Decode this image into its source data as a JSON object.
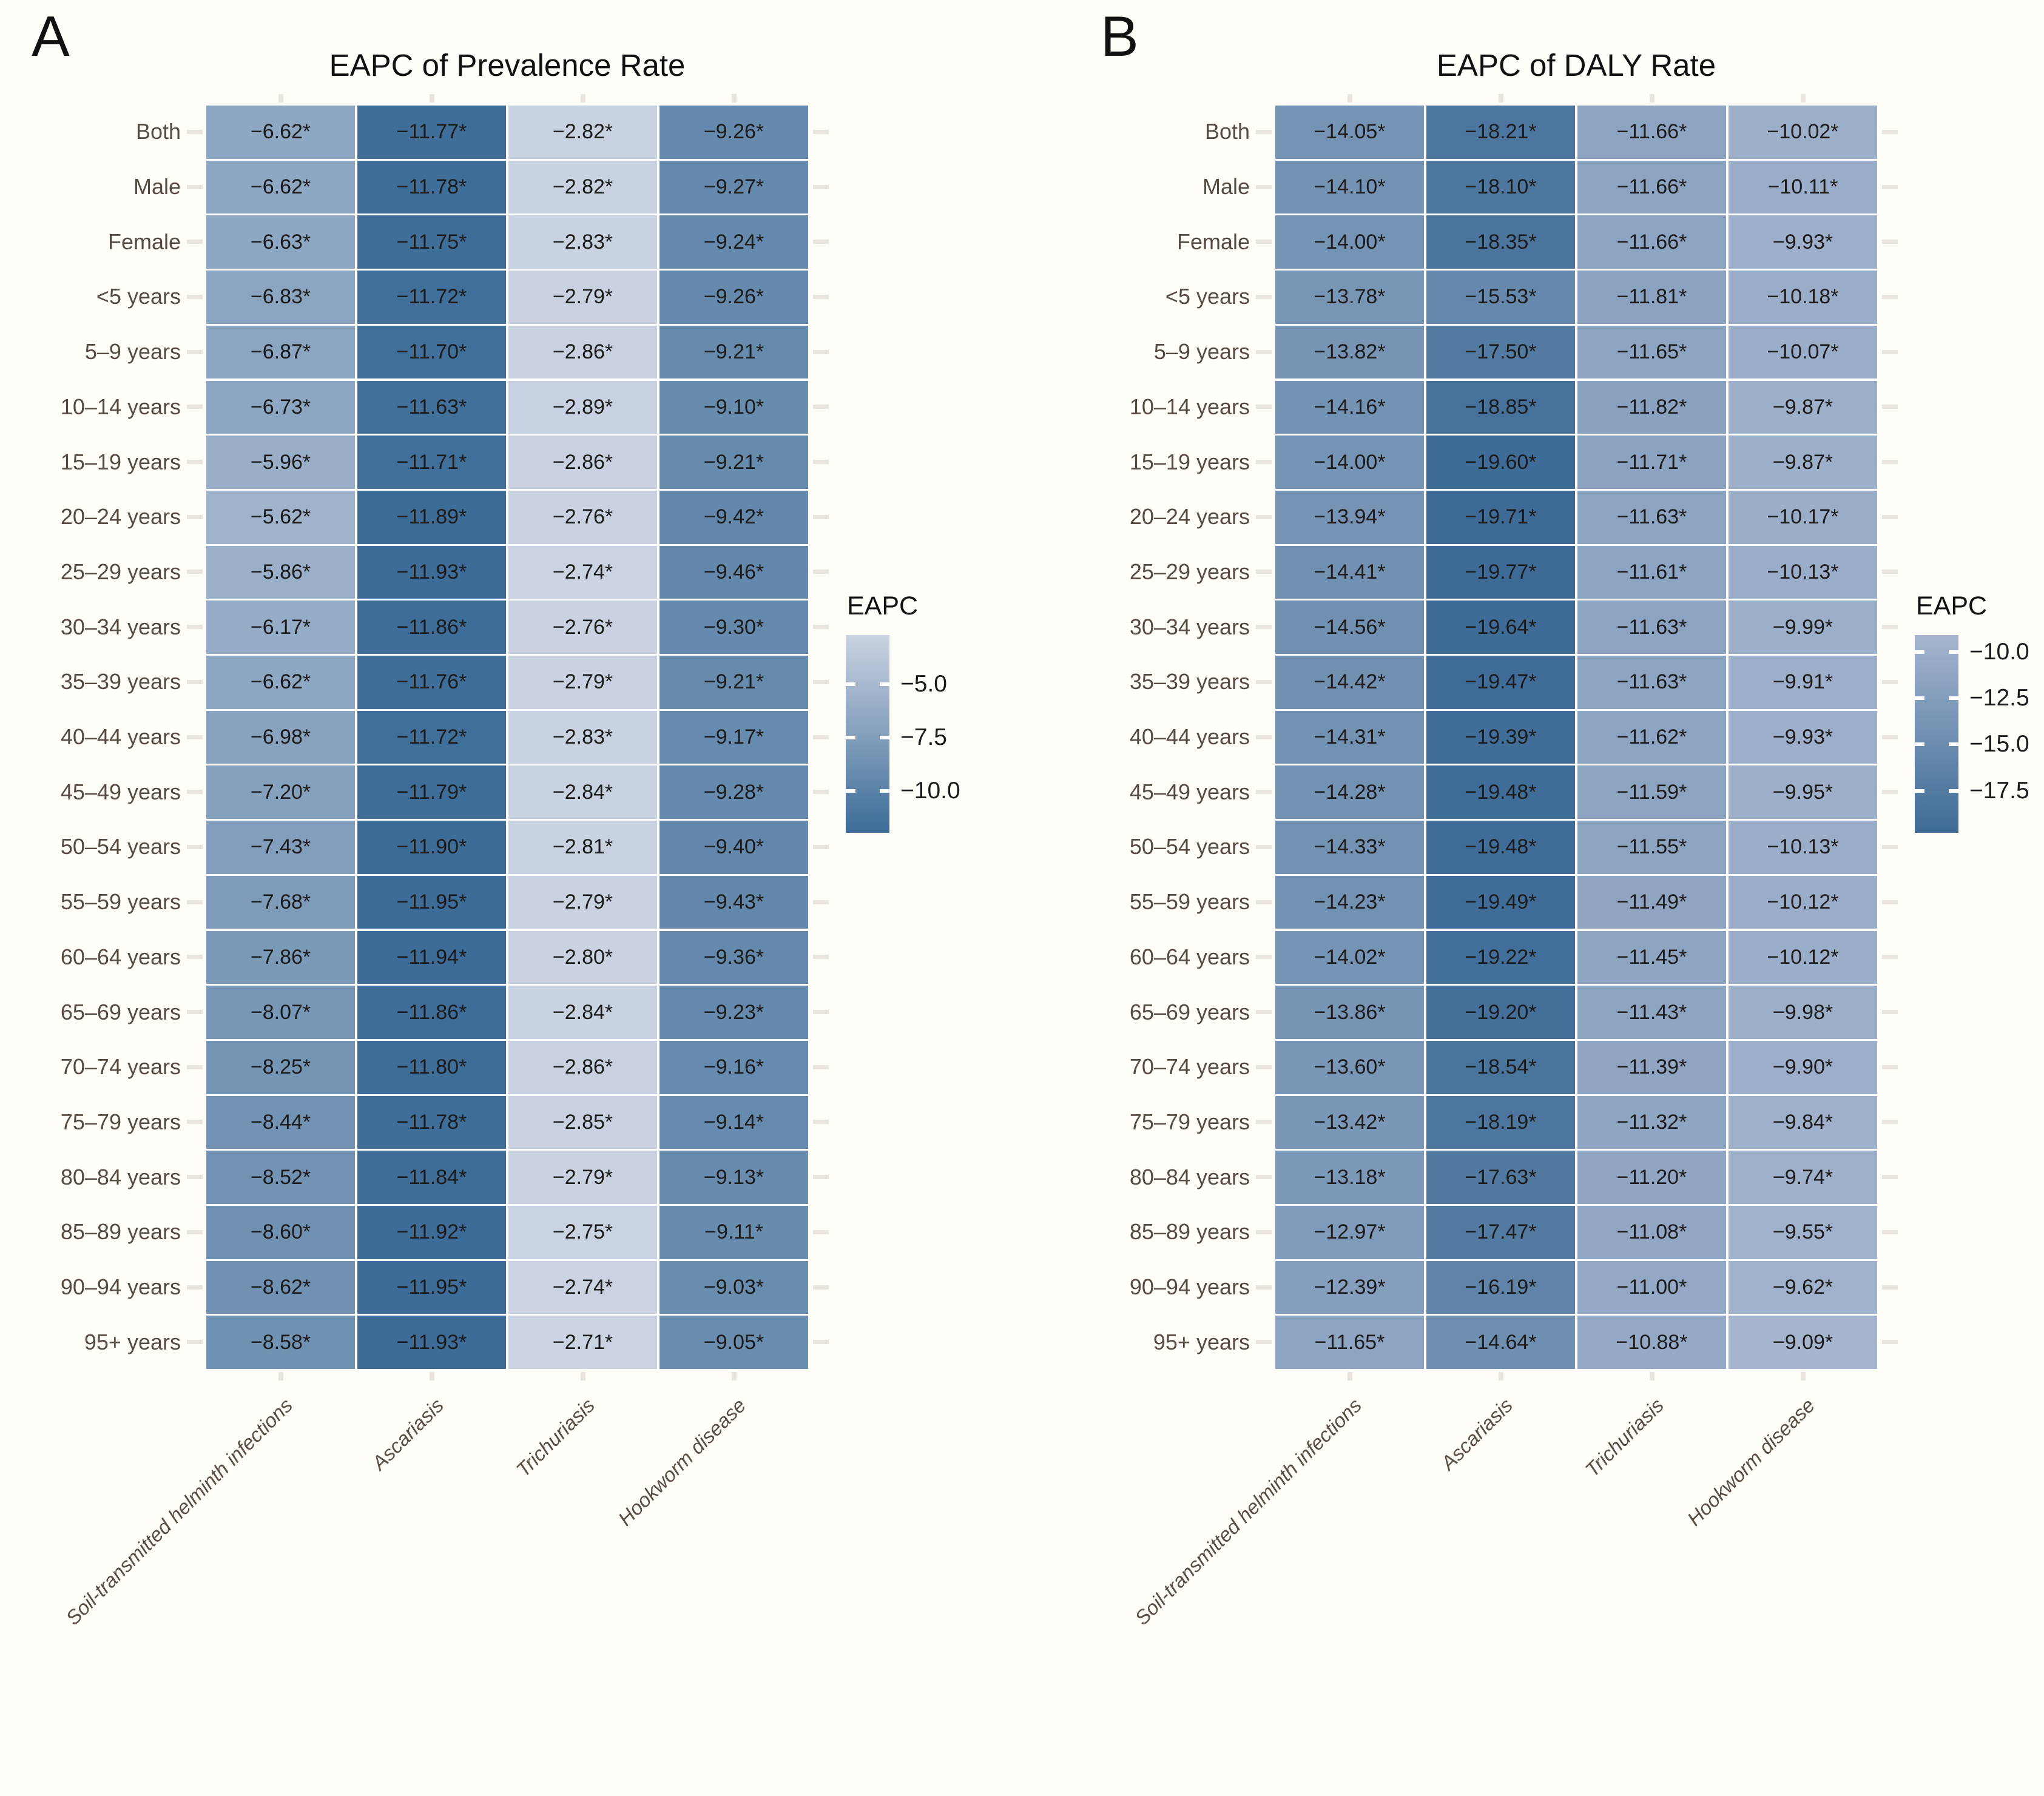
{
  "figure": {
    "background": "#fffdf8",
    "tick_color": "#eae4de",
    "row_label_color": "#564a42",
    "axis_label_color": "#5a4d44",
    "cell_text_color": "#1b1b1b"
  },
  "chart_data": [
    {
      "type": "heatmap",
      "panel_letter": "A",
      "title": "EAPC of Prevalence Rate",
      "legend_title": "EAPC",
      "legend_position": "right",
      "grid": "off",
      "all_values_significant": true,
      "significance_marker": "*",
      "columns": [
        "Soil-transmitted helminth infections",
        "Ascariasis",
        "Trichuriasis",
        "Hookworm disease"
      ],
      "rows": [
        "Both",
        "Male",
        "Female",
        "<5 years",
        "5–9 years",
        "10–14 years",
        "15–19 years",
        "20–24 years",
        "25–29 years",
        "30–34 years",
        "35–39 years",
        "40–44 years",
        "45–49 years",
        "50–54 years",
        "55–59 years",
        "60–64 years",
        "65–69 years",
        "70–74 years",
        "75–79 years",
        "80–84 years",
        "85–89 years",
        "90–94 years",
        "95+ years"
      ],
      "values": [
        [
          -6.62,
          -11.77,
          -2.82,
          -9.26
        ],
        [
          -6.62,
          -11.78,
          -2.82,
          -9.27
        ],
        [
          -6.63,
          -11.75,
          -2.83,
          -9.24
        ],
        [
          -6.83,
          -11.72,
          -2.79,
          -9.26
        ],
        [
          -6.87,
          -11.7,
          -2.86,
          -9.21
        ],
        [
          -6.73,
          -11.63,
          -2.89,
          -9.1
        ],
        [
          -5.96,
          -11.71,
          -2.86,
          -9.21
        ],
        [
          -5.62,
          -11.89,
          -2.76,
          -9.42
        ],
        [
          -5.86,
          -11.93,
          -2.74,
          -9.46
        ],
        [
          -6.17,
          -11.86,
          -2.76,
          -9.3
        ],
        [
          -6.62,
          -11.76,
          -2.79,
          -9.21
        ],
        [
          -6.98,
          -11.72,
          -2.83,
          -9.17
        ],
        [
          -7.2,
          -11.79,
          -2.84,
          -9.28
        ],
        [
          -7.43,
          -11.9,
          -2.81,
          -9.4
        ],
        [
          -7.68,
          -11.95,
          -2.79,
          -9.43
        ],
        [
          -7.86,
          -11.94,
          -2.8,
          -9.36
        ],
        [
          -8.07,
          -11.86,
          -2.84,
          -9.23
        ],
        [
          -8.25,
          -11.8,
          -2.86,
          -9.16
        ],
        [
          -8.44,
          -11.78,
          -2.85,
          -9.14
        ],
        [
          -8.52,
          -11.84,
          -2.79,
          -9.13
        ],
        [
          -8.6,
          -11.92,
          -2.75,
          -9.11
        ],
        [
          -8.62,
          -11.95,
          -2.74,
          -9.03
        ],
        [
          -8.58,
          -11.93,
          -2.71,
          -9.05
        ]
      ],
      "legend_ticks": [
        -5.0,
        -7.5,
        -10.0
      ],
      "color_scale": {
        "light": "#cbd3e2",
        "dark": "#3c6c97",
        "domain_max": -2.71,
        "domain_min": -11.95
      }
    },
    {
      "type": "heatmap",
      "panel_letter": "B",
      "title": "EAPC of DALY Rate",
      "legend_title": "EAPC",
      "legend_position": "right",
      "grid": "off",
      "all_values_significant": true,
      "significance_marker": "*",
      "columns": [
        "Soil-transmitted helminth infections",
        "Ascariasis",
        "Trichuriasis",
        "Hookworm disease"
      ],
      "rows": [
        "Both",
        "Male",
        "Female",
        "<5 years",
        "5–9 years",
        "10–14 years",
        "15–19 years",
        "20–24 years",
        "25–29 years",
        "30–34 years",
        "35–39 years",
        "40–44 years",
        "45–49 years",
        "50–54 years",
        "55–59 years",
        "60–64 years",
        "65–69 years",
        "70–74 years",
        "75–79 years",
        "80–84 years",
        "85–89 years",
        "90–94 years",
        "95+ years"
      ],
      "values": [
        [
          -14.05,
          -18.21,
          -11.66,
          -10.02
        ],
        [
          -14.1,
          -18.1,
          -11.66,
          -10.11
        ],
        [
          -14.0,
          -18.35,
          -11.66,
          -9.93
        ],
        [
          -13.78,
          -15.53,
          -11.81,
          -10.18
        ],
        [
          -13.82,
          -17.5,
          -11.65,
          -10.07
        ],
        [
          -14.16,
          -18.85,
          -11.82,
          -9.87
        ],
        [
          -14.0,
          -19.6,
          -11.71,
          -9.87
        ],
        [
          -13.94,
          -19.71,
          -11.63,
          -10.17
        ],
        [
          -14.41,
          -19.77,
          -11.61,
          -10.13
        ],
        [
          -14.56,
          -19.64,
          -11.63,
          -9.99
        ],
        [
          -14.42,
          -19.47,
          -11.63,
          -9.91
        ],
        [
          -14.31,
          -19.39,
          -11.62,
          -9.93
        ],
        [
          -14.28,
          -19.48,
          -11.59,
          -9.95
        ],
        [
          -14.33,
          -19.48,
          -11.55,
          -10.13
        ],
        [
          -14.23,
          -19.49,
          -11.49,
          -10.12
        ],
        [
          -14.02,
          -19.22,
          -11.45,
          -10.12
        ],
        [
          -13.86,
          -19.2,
          -11.43,
          -9.98
        ],
        [
          -13.6,
          -18.54,
          -11.39,
          -9.9
        ],
        [
          -13.42,
          -18.19,
          -11.32,
          -9.84
        ],
        [
          -13.18,
          -17.63,
          -11.2,
          -9.74
        ],
        [
          -12.97,
          -17.47,
          -11.08,
          -9.55
        ],
        [
          -12.39,
          -16.19,
          -11.0,
          -9.62
        ],
        [
          -11.65,
          -14.64,
          -10.88,
          -9.09
        ]
      ],
      "legend_ticks": [
        -10.0,
        -12.5,
        -15.0,
        -17.5
      ],
      "color_scale": {
        "light": "#a5b5ce",
        "dark": "#3d6b96",
        "domain_max": -9.09,
        "domain_min": -19.77
      }
    }
  ]
}
